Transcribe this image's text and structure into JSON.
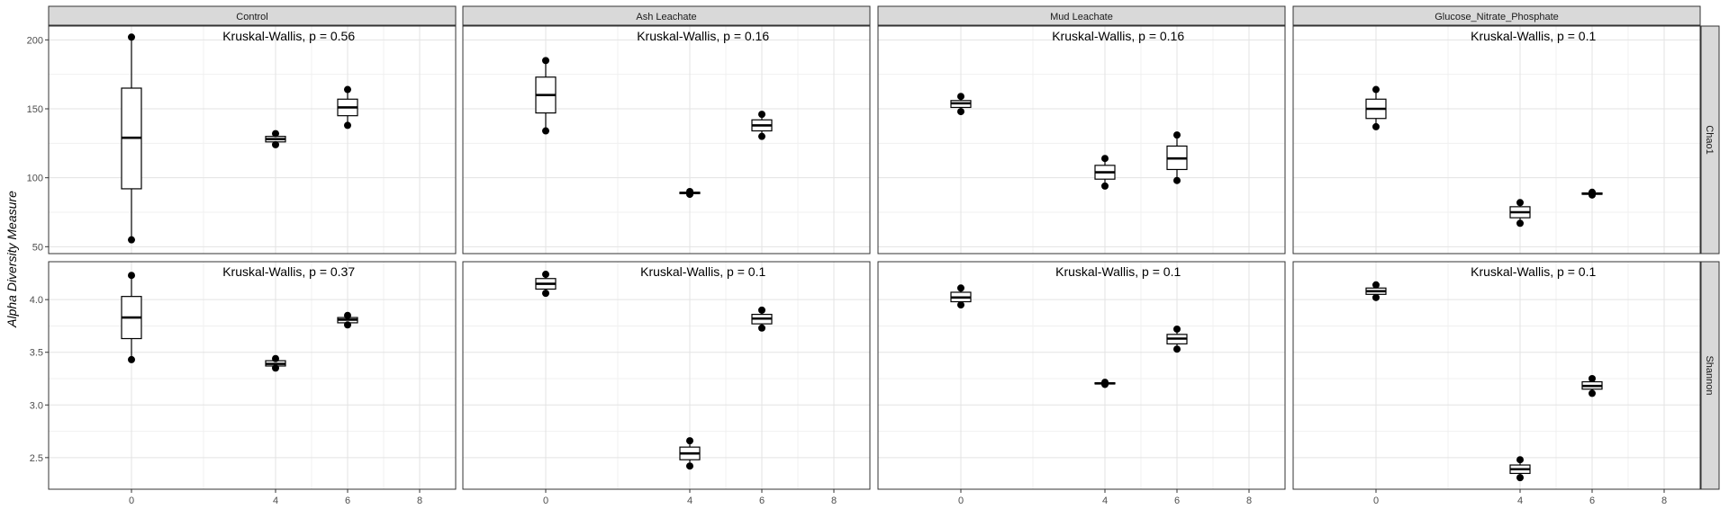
{
  "y_axis_label": "Alpha Diversity Measure",
  "chart_data": {
    "type": "box",
    "facet_columns": [
      "Control",
      "Ash Leachate",
      "Mud Leachate",
      "Glucose_Nitrate_Phosphate"
    ],
    "facet_rows": [
      "Chao1",
      "Shannon"
    ],
    "x_ticks": [
      0,
      4,
      6,
      8
    ],
    "xlim": [
      -2.3,
      9
    ],
    "grid": true,
    "panels": [
      {
        "row": "Chao1",
        "col": "Control",
        "annotation": "Kruskal-Wallis, p = 0.56",
        "ylim": [
          45,
          210
        ],
        "y_ticks": [
          50,
          100,
          150,
          200
        ],
        "boxes": [
          {
            "x": 0,
            "q1": 92,
            "median": 129,
            "q3": 165,
            "min": 55,
            "max": 202,
            "points": [
              55,
              202
            ]
          },
          {
            "x": 4,
            "q1": 126,
            "median": 128,
            "q3": 130,
            "min": 124,
            "max": 132,
            "points": [
              124,
              132
            ]
          },
          {
            "x": 6,
            "q1": 145,
            "median": 151,
            "q3": 157,
            "min": 138,
            "max": 164,
            "points": [
              138,
              164
            ]
          }
        ]
      },
      {
        "row": "Chao1",
        "col": "Ash Leachate",
        "annotation": "Kruskal-Wallis, p = 0.16",
        "ylim": [
          45,
          210
        ],
        "y_ticks": [
          50,
          100,
          150,
          200
        ],
        "boxes": [
          {
            "x": 0,
            "q1": 147,
            "median": 160,
            "q3": 173,
            "min": 134,
            "max": 185,
            "points": [
              134,
              185
            ]
          },
          {
            "x": 4,
            "q1": 88.5,
            "median": 89,
            "q3": 89.5,
            "min": 88,
            "max": 90,
            "points": [
              88,
              90
            ]
          },
          {
            "x": 6,
            "q1": 134,
            "median": 138,
            "q3": 142,
            "min": 130,
            "max": 146,
            "points": [
              130,
              146
            ]
          }
        ]
      },
      {
        "row": "Chao1",
        "col": "Mud Leachate",
        "annotation": "Kruskal-Wallis, p = 0.16",
        "ylim": [
          45,
          210
        ],
        "y_ticks": [
          50,
          100,
          150,
          200
        ],
        "boxes": [
          {
            "x": 0,
            "q1": 151,
            "median": 154,
            "q3": 156,
            "min": 148,
            "max": 159,
            "points": [
              148,
              159
            ]
          },
          {
            "x": 4,
            "q1": 99,
            "median": 104,
            "q3": 109,
            "min": 94,
            "max": 114,
            "points": [
              94,
              114
            ]
          },
          {
            "x": 6,
            "q1": 106,
            "median": 114,
            "q3": 123,
            "min": 98,
            "max": 131,
            "points": [
              98,
              131
            ]
          }
        ]
      },
      {
        "row": "Chao1",
        "col": "Glucose_Nitrate_Phosphate",
        "annotation": "Kruskal-Wallis, p = 0.1",
        "ylim": [
          45,
          210
        ],
        "y_ticks": [
          50,
          100,
          150,
          200
        ],
        "boxes": [
          {
            "x": 0,
            "q1": 143,
            "median": 150,
            "q3": 157,
            "min": 137,
            "max": 164,
            "points": [
              137,
              164
            ]
          },
          {
            "x": 4,
            "q1": 71,
            "median": 75,
            "q3": 79,
            "min": 67,
            "max": 82,
            "points": [
              67,
              82
            ]
          },
          {
            "x": 6,
            "q1": 88,
            "median": 88.5,
            "q3": 89,
            "min": 87.5,
            "max": 89.5,
            "points": [
              87.5,
              89.5
            ]
          }
        ]
      },
      {
        "row": "Shannon",
        "col": "Control",
        "annotation": "Kruskal-Wallis, p = 0.37",
        "ylim": [
          2.2,
          4.36
        ],
        "y_ticks": [
          2.5,
          3.0,
          3.5,
          4.0
        ],
        "boxes": [
          {
            "x": 0,
            "q1": 3.63,
            "median": 3.83,
            "q3": 4.03,
            "min": 3.43,
            "max": 4.23,
            "points": [
              3.43,
              4.23
            ]
          },
          {
            "x": 4,
            "q1": 3.37,
            "median": 3.39,
            "q3": 3.42,
            "min": 3.35,
            "max": 3.44,
            "points": [
              3.35,
              3.44
            ]
          },
          {
            "x": 6,
            "q1": 3.78,
            "median": 3.81,
            "q3": 3.83,
            "min": 3.76,
            "max": 3.85,
            "points": [
              3.76,
              3.85
            ]
          }
        ]
      },
      {
        "row": "Shannon",
        "col": "Ash Leachate",
        "annotation": "Kruskal-Wallis, p = 0.1",
        "ylim": [
          2.2,
          4.36
        ],
        "y_ticks": [
          2.5,
          3.0,
          3.5,
          4.0
        ],
        "boxes": [
          {
            "x": 0,
            "q1": 4.1,
            "median": 4.15,
            "q3": 4.2,
            "min": 4.06,
            "max": 4.24,
            "points": [
              4.06,
              4.24
            ]
          },
          {
            "x": 4,
            "q1": 2.48,
            "median": 2.54,
            "q3": 2.6,
            "min": 2.42,
            "max": 2.66,
            "points": [
              2.42,
              2.66
            ]
          },
          {
            "x": 6,
            "q1": 3.77,
            "median": 3.82,
            "q3": 3.86,
            "min": 3.73,
            "max": 3.9,
            "points": [
              3.73,
              3.9
            ]
          }
        ]
      },
      {
        "row": "Shannon",
        "col": "Mud Leachate",
        "annotation": "Kruskal-Wallis, p = 0.1",
        "ylim": [
          2.2,
          4.36
        ],
        "y_ticks": [
          2.5,
          3.0,
          3.5,
          4.0
        ],
        "boxes": [
          {
            "x": 0,
            "q1": 3.98,
            "median": 4.02,
            "q3": 4.07,
            "min": 3.95,
            "max": 4.11,
            "points": [
              3.95,
              4.11
            ]
          },
          {
            "x": 4,
            "q1": 3.2,
            "median": 3.205,
            "q3": 3.21,
            "min": 3.195,
            "max": 3.215,
            "points": [
              3.195,
              3.215
            ]
          },
          {
            "x": 6,
            "q1": 3.58,
            "median": 3.63,
            "q3": 3.67,
            "min": 3.53,
            "max": 3.72,
            "points": [
              3.53,
              3.72
            ]
          }
        ]
      },
      {
        "row": "Shannon",
        "col": "Glucose_Nitrate_Phosphate",
        "annotation": "Kruskal-Wallis, p = 0.1",
        "ylim": [
          2.2,
          4.36
        ],
        "y_ticks": [
          2.5,
          3.0,
          3.5,
          4.0
        ],
        "boxes": [
          {
            "x": 0,
            "q1": 4.05,
            "median": 4.08,
            "q3": 4.11,
            "min": 4.02,
            "max": 4.14,
            "points": [
              4.02,
              4.14
            ]
          },
          {
            "x": 4,
            "q1": 2.35,
            "median": 2.39,
            "q3": 2.43,
            "min": 2.31,
            "max": 2.48,
            "points": [
              2.31,
              2.48
            ]
          },
          {
            "x": 6,
            "q1": 3.15,
            "median": 3.18,
            "q3": 3.22,
            "min": 3.11,
            "max": 3.25,
            "points": [
              3.11,
              3.25
            ]
          }
        ]
      }
    ]
  }
}
